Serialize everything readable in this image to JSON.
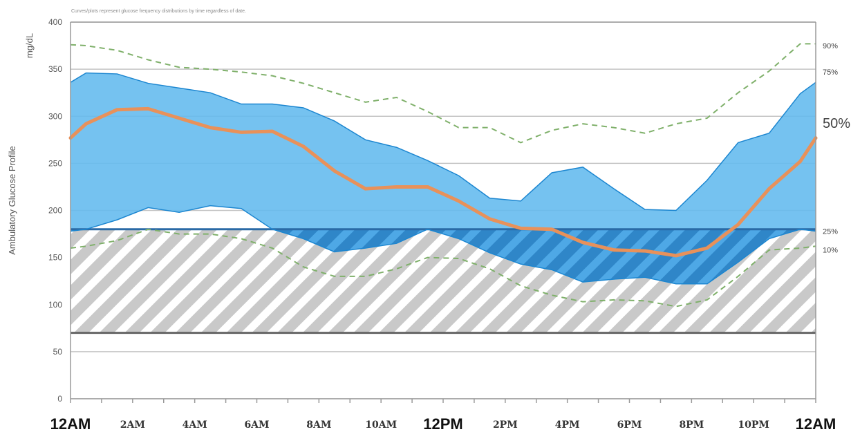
{
  "chart_data": {
    "type": "area",
    "note": "Curves/plots represent glucose frequency distributions by time regardless of date.",
    "ylabel": "Ambulatory Glucose Profile",
    "yunit": "mg/dL",
    "ylim": [
      0,
      400
    ],
    "yticks": [
      0,
      50,
      100,
      150,
      200,
      250,
      300,
      350,
      400
    ],
    "grid": true,
    "xlim": [
      0,
      24
    ],
    "xticks": [
      {
        "hour": 0,
        "label": "12AM",
        "major": true
      },
      {
        "hour": 2,
        "label": "2AM",
        "major": false
      },
      {
        "hour": 4,
        "label": "4AM",
        "major": false
      },
      {
        "hour": 6,
        "label": "6AM",
        "major": false
      },
      {
        "hour": 8,
        "label": "8AM",
        "major": false
      },
      {
        "hour": 10,
        "label": "10AM",
        "major": false
      },
      {
        "hour": 12,
        "label": "12PM",
        "major": true
      },
      {
        "hour": 14,
        "label": "2PM",
        "major": false
      },
      {
        "hour": 16,
        "label": "4PM",
        "major": false
      },
      {
        "hour": 18,
        "label": "6PM",
        "major": false
      },
      {
        "hour": 20,
        "label": "8PM",
        "major": false
      },
      {
        "hour": 22,
        "label": "10PM",
        "major": false
      },
      {
        "hour": 24,
        "label": "12AM",
        "major": true
      }
    ],
    "target_range": {
      "low": 70,
      "high": 180
    },
    "x": [
      0,
      0.5,
      1.5,
      2.5,
      3.5,
      4.5,
      5.5,
      6.5,
      7.5,
      8.5,
      9.5,
      10.5,
      11.5,
      12.5,
      13.5,
      14.5,
      15.5,
      16.5,
      17.5,
      18.5,
      19.5,
      20.5,
      21.5,
      22.5,
      23.5,
      24
    ],
    "series": [
      {
        "name": "90%",
        "values": [
          376,
          375,
          370,
          360,
          352,
          350,
          347,
          343,
          335,
          325,
          315,
          320,
          305,
          288,
          288,
          272,
          285,
          292,
          288,
          282,
          292,
          298,
          325,
          348,
          377,
          377
        ],
        "color": "#7fb06a",
        "style": "dashed"
      },
      {
        "name": "75%",
        "values": [
          336,
          346,
          345,
          335,
          330,
          325,
          313,
          313,
          309,
          295,
          275,
          267,
          253,
          237,
          213,
          210,
          240,
          246,
          223,
          201,
          200,
          232,
          272,
          282,
          324,
          336
        ],
        "color": "#1c86d0",
        "style": "band-upper"
      },
      {
        "name": "50%",
        "values": [
          277,
          292,
          307,
          308,
          298,
          288,
          283,
          284,
          268,
          242,
          223,
          225,
          225,
          210,
          191,
          181,
          180,
          166,
          158,
          157,
          152,
          160,
          185,
          223,
          252,
          277
        ],
        "color": "#e8915a",
        "style": "solid"
      },
      {
        "name": "25%",
        "values": [
          178,
          180,
          190,
          203,
          198,
          205,
          202,
          180,
          170,
          156,
          160,
          165,
          180,
          170,
          155,
          143,
          137,
          124,
          127,
          129,
          122,
          122,
          145,
          170,
          180,
          178
        ],
        "color": "#1c86d0",
        "style": "band-lower"
      },
      {
        "name": "10%",
        "values": [
          160,
          162,
          168,
          180,
          175,
          175,
          170,
          160,
          140,
          130,
          130,
          138,
          150,
          149,
          138,
          120,
          110,
          103,
          105,
          104,
          98,
          105,
          130,
          158,
          160,
          162
        ],
        "color": "#7fb06a",
        "style": "dashed"
      }
    ],
    "band_color": "#66bbee",
    "legend": "right"
  }
}
